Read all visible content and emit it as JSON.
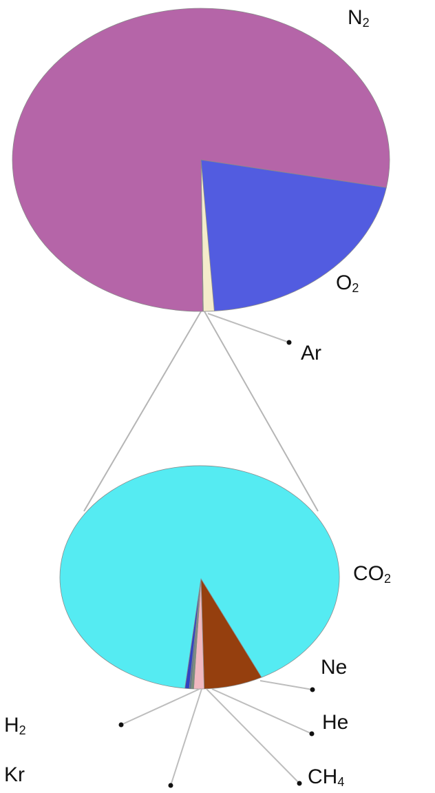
{
  "chart_data": [
    {
      "type": "pie",
      "slices": [
        {
          "label": "N",
          "subscript": "2",
          "value": 78.08,
          "color": "#b565a8"
        },
        {
          "label": "O",
          "subscript": "2",
          "value": 20.95,
          "color": "#525ce0"
        },
        {
          "label": "Ar",
          "subscript": "",
          "value": 0.93,
          "color": "#f4eccb"
        },
        {
          "label": "",
          "subscript": "",
          "value": 0.04,
          "color": "#e8d57a"
        }
      ]
    },
    {
      "type": "pie",
      "slices": [
        {
          "label": "CO",
          "subscript": "2",
          "value": 91.0,
          "color": "#55ebf2"
        },
        {
          "label": "Ne",
          "subscript": "",
          "value": 6.8,
          "color": "#953f0e"
        },
        {
          "label": "He",
          "subscript": "",
          "value": 1.2,
          "color": "#f0b8c0"
        },
        {
          "label": "CH",
          "subscript": "4",
          "value": 0.3,
          "color": "#7a8f7a"
        },
        {
          "label": "Kr",
          "subscript": "",
          "value": 0.2,
          "color": "#55708c"
        },
        {
          "label": "H",
          "subscript": "2",
          "value": 0.5,
          "color": "#3342c0"
        }
      ]
    }
  ]
}
